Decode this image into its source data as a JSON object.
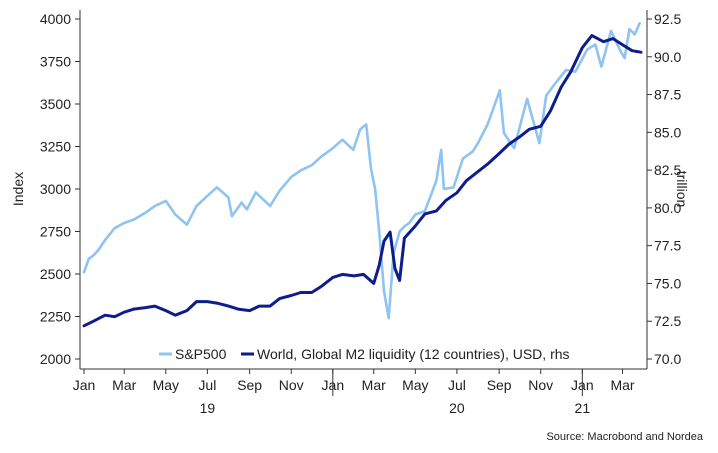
{
  "chart_data": {
    "type": "line",
    "x_axis": {
      "month_labels": [
        "Jan",
        "Mar",
        "May",
        "Jul",
        "Sep",
        "Nov",
        "Jan",
        "Mar",
        "May",
        "Jul",
        "Sep",
        "Nov",
        "Jan",
        "Mar"
      ],
      "year_labels": [
        {
          "label": "19",
          "under": "Jul"
        },
        {
          "label": "20",
          "under": "Jul"
        },
        {
          "label": "21",
          "under": "Jan"
        }
      ],
      "range": [
        "2019-01",
        "2021-03"
      ]
    },
    "y_left": {
      "label": "Index",
      "ticks": [
        2000,
        2250,
        2500,
        2750,
        3000,
        3250,
        3500,
        3750,
        4000
      ],
      "range": [
        2000,
        4000
      ]
    },
    "y_right": {
      "label": "trillion",
      "ticks": [
        "70.0",
        "72.5",
        "75.0",
        "77.5",
        "80.0",
        "82.5",
        "85.0",
        "87.5",
        "90.0",
        "92.5"
      ],
      "range": [
        70,
        92.5
      ]
    },
    "grid": false,
    "legend_position": "bottom",
    "source": "Source: Macrobond and Nordea",
    "series": [
      {
        "name": "S&P500",
        "axis": "left",
        "color": "#8ec3f2",
        "points": [
          [
            "2019-01-01",
            2510
          ],
          [
            "2019-01-08",
            2590
          ],
          [
            "2019-01-15",
            2610
          ],
          [
            "2019-01-22",
            2640
          ],
          [
            "2019-02-01",
            2700
          ],
          [
            "2019-02-15",
            2770
          ],
          [
            "2019-03-01",
            2800
          ],
          [
            "2019-03-15",
            2820
          ],
          [
            "2019-04-01",
            2860
          ],
          [
            "2019-04-15",
            2900
          ],
          [
            "2019-05-01",
            2930
          ],
          [
            "2019-05-15",
            2850
          ],
          [
            "2019-06-01",
            2790
          ],
          [
            "2019-06-15",
            2900
          ],
          [
            "2019-07-01",
            2960
          ],
          [
            "2019-07-15",
            3010
          ],
          [
            "2019-08-01",
            2950
          ],
          [
            "2019-08-06",
            2840
          ],
          [
            "2019-08-20",
            2920
          ],
          [
            "2019-08-28",
            2880
          ],
          [
            "2019-09-10",
            2980
          ],
          [
            "2019-10-01",
            2900
          ],
          [
            "2019-10-15",
            2990
          ],
          [
            "2019-11-01",
            3070
          ],
          [
            "2019-11-15",
            3110
          ],
          [
            "2019-12-01",
            3140
          ],
          [
            "2019-12-15",
            3190
          ],
          [
            "2020-01-01",
            3240
          ],
          [
            "2020-01-15",
            3290
          ],
          [
            "2020-01-31",
            3230
          ],
          [
            "2020-02-10",
            3350
          ],
          [
            "2020-02-19",
            3380
          ],
          [
            "2020-02-26",
            3120
          ],
          [
            "2020-03-03",
            3000
          ],
          [
            "2020-03-09",
            2750
          ],
          [
            "2020-03-16",
            2400
          ],
          [
            "2020-03-23",
            2240
          ],
          [
            "2020-03-30",
            2620
          ],
          [
            "2020-04-08",
            2750
          ],
          [
            "2020-04-15",
            2780
          ],
          [
            "2020-04-22",
            2800
          ],
          [
            "2020-05-01",
            2850
          ],
          [
            "2020-05-15",
            2870
          ],
          [
            "2020-06-01",
            3050
          ],
          [
            "2020-06-08",
            3230
          ],
          [
            "2020-06-12",
            3000
          ],
          [
            "2020-06-26",
            3010
          ],
          [
            "2020-07-10",
            3180
          ],
          [
            "2020-07-24",
            3220
          ],
          [
            "2020-08-01",
            3270
          ],
          [
            "2020-08-15",
            3380
          ],
          [
            "2020-09-02",
            3580
          ],
          [
            "2020-09-08",
            3330
          ],
          [
            "2020-09-23",
            3240
          ],
          [
            "2020-10-12",
            3530
          ],
          [
            "2020-10-30",
            3270
          ],
          [
            "2020-11-09",
            3550
          ],
          [
            "2020-11-24",
            3630
          ],
          [
            "2020-12-08",
            3700
          ],
          [
            "2020-12-22",
            3690
          ],
          [
            "2021-01-08",
            3820
          ],
          [
            "2021-01-20",
            3850
          ],
          [
            "2021-01-29",
            3720
          ],
          [
            "2021-02-12",
            3930
          ],
          [
            "2021-02-25",
            3820
          ],
          [
            "2021-03-04",
            3770
          ],
          [
            "2021-03-11",
            3940
          ],
          [
            "2021-03-19",
            3910
          ],
          [
            "2021-03-26",
            3975
          ]
        ]
      },
      {
        "name": "World, Global M2 liquidity (12 countries), USD, rhs",
        "axis": "right",
        "color": "#0f1d8c",
        "points": [
          [
            "2019-01-01",
            72.2
          ],
          [
            "2019-01-15",
            72.5
          ],
          [
            "2019-02-01",
            72.9
          ],
          [
            "2019-02-15",
            72.8
          ],
          [
            "2019-03-01",
            73.1
          ],
          [
            "2019-03-15",
            73.3
          ],
          [
            "2019-04-01",
            73.4
          ],
          [
            "2019-04-15",
            73.5
          ],
          [
            "2019-05-01",
            73.2
          ],
          [
            "2019-05-15",
            72.9
          ],
          [
            "2019-06-01",
            73.2
          ],
          [
            "2019-06-15",
            73.8
          ],
          [
            "2019-07-01",
            73.8
          ],
          [
            "2019-07-15",
            73.7
          ],
          [
            "2019-08-01",
            73.5
          ],
          [
            "2019-08-15",
            73.3
          ],
          [
            "2019-09-01",
            73.2
          ],
          [
            "2019-09-15",
            73.5
          ],
          [
            "2019-10-01",
            73.5
          ],
          [
            "2019-10-15",
            74.0
          ],
          [
            "2019-11-01",
            74.2
          ],
          [
            "2019-11-15",
            74.4
          ],
          [
            "2019-12-01",
            74.4
          ],
          [
            "2019-12-15",
            74.8
          ],
          [
            "2020-01-01",
            75.4
          ],
          [
            "2020-01-15",
            75.6
          ],
          [
            "2020-02-01",
            75.5
          ],
          [
            "2020-02-15",
            75.6
          ],
          [
            "2020-03-01",
            75.0
          ],
          [
            "2020-03-09",
            76.2
          ],
          [
            "2020-03-16",
            77.8
          ],
          [
            "2020-03-25",
            78.4
          ],
          [
            "2020-04-01",
            76.0
          ],
          [
            "2020-04-08",
            75.2
          ],
          [
            "2020-04-15",
            78.0
          ],
          [
            "2020-05-01",
            78.8
          ],
          [
            "2020-05-15",
            79.6
          ],
          [
            "2020-06-01",
            79.8
          ],
          [
            "2020-06-15",
            80.5
          ],
          [
            "2020-07-01",
            81.0
          ],
          [
            "2020-07-15",
            81.8
          ],
          [
            "2020-08-01",
            82.4
          ],
          [
            "2020-08-15",
            82.9
          ],
          [
            "2020-09-01",
            83.6
          ],
          [
            "2020-09-15",
            84.2
          ],
          [
            "2020-10-01",
            84.7
          ],
          [
            "2020-10-15",
            85.2
          ],
          [
            "2020-11-01",
            85.4
          ],
          [
            "2020-11-15",
            86.4
          ],
          [
            "2020-12-01",
            88.0
          ],
          [
            "2020-12-15",
            89.0
          ],
          [
            "2021-01-01",
            90.6
          ],
          [
            "2021-01-15",
            91.4
          ],
          [
            "2021-02-01",
            91.0
          ],
          [
            "2021-02-15",
            91.2
          ],
          [
            "2021-03-01",
            90.8
          ],
          [
            "2021-03-15",
            90.4
          ],
          [
            "2021-03-28",
            90.3
          ]
        ]
      }
    ]
  }
}
